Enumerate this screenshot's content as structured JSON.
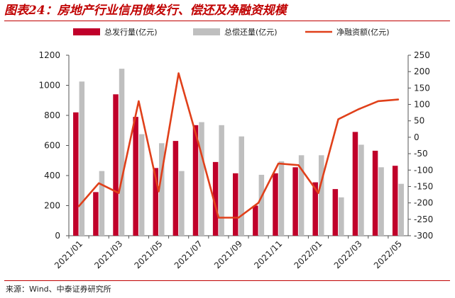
{
  "figure": {
    "title": "图表24：房地产行业信用债发行、偿还及净融资规模",
    "source": "来源：Wind、中泰证券研究所"
  },
  "colors": {
    "title": "#c00000",
    "issuance_bar": "#c0002a",
    "repayment_bar": "#bfbfbf",
    "net_line": "#e0401a"
  },
  "chart_data": {
    "type": "bar",
    "categories": [
      "2021/01",
      "2021/02",
      "2021/03",
      "2021/04",
      "2021/05",
      "2021/06",
      "2021/07",
      "2021/08",
      "2021/09",
      "2021/10",
      "2021/11",
      "2021/12",
      "2022/01",
      "2022/02",
      "2022/03",
      "2022/04",
      "2022/05"
    ],
    "x_tick_labels": [
      "2021/01",
      "2021/03",
      "2021/05",
      "2021/07",
      "2021/09",
      "2021/11",
      "2022/01",
      "2022/03",
      "2022/05"
    ],
    "series": [
      {
        "name": "总发行量(亿元)",
        "kind": "bar",
        "axis": "left",
        "values": [
          820,
          290,
          940,
          790,
          450,
          630,
          735,
          490,
          415,
          200,
          415,
          455,
          355,
          310,
          690,
          565,
          465
        ]
      },
      {
        "name": "总偿还量(亿元)",
        "kind": "bar",
        "axis": "left",
        "values": [
          1025,
          430,
          1110,
          675,
          615,
          430,
          755,
          735,
          660,
          405,
          495,
          535,
          535,
          255,
          605,
          455,
          345
        ]
      },
      {
        "name": "净融资额(亿元)",
        "kind": "line",
        "axis": "right",
        "values": [
          -210,
          -140,
          -170,
          110,
          -165,
          195,
          -20,
          -245,
          -245,
          -200,
          -80,
          -85,
          -170,
          55,
          85,
          110,
          115
        ]
      }
    ],
    "y_left": {
      "min": 0,
      "max": 1200,
      "ticks": [
        0,
        200,
        400,
        600,
        800,
        1000,
        1200
      ]
    },
    "y_right": {
      "min": -300,
      "max": 250,
      "ticks": [
        -300,
        -250,
        -200,
        -150,
        -100,
        -50,
        0,
        50,
        100,
        150,
        200,
        250
      ]
    },
    "legend_position": "top",
    "grid": false
  }
}
